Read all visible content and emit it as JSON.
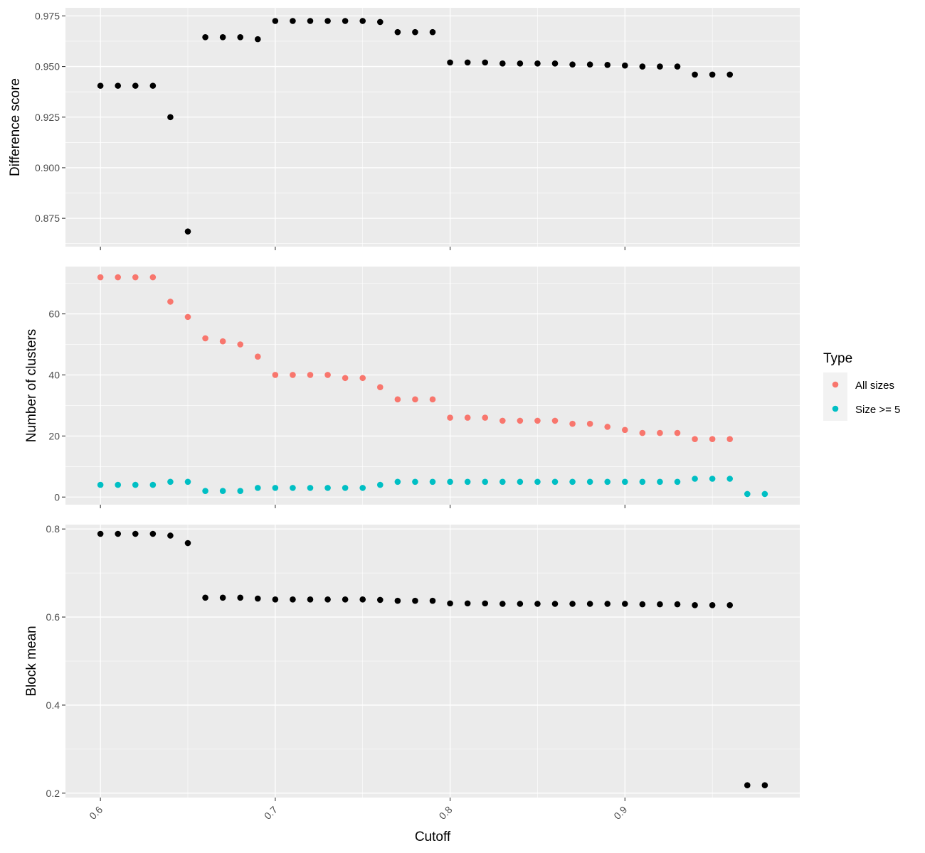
{
  "chart_data": {
    "type": "scatter",
    "xlabel": "Cutoff",
    "x_ticks": [
      0.6,
      0.7,
      0.8,
      0.9
    ],
    "xlim": [
      0.58,
      1.0
    ],
    "colors": {
      "panel_bg": "#ebebeb",
      "grid": "#ffffff",
      "points_default": "#000000",
      "all_sizes": "#f8766d",
      "size_ge_5": "#00bfc4",
      "legend_key_bg": "#f2f2f2"
    },
    "legend": {
      "title": "Type",
      "placement": "right",
      "entries": [
        {
          "label": "All sizes",
          "color": "#f8766d"
        },
        {
          "label": "Size >= 5",
          "color": "#00bfc4"
        }
      ]
    },
    "panels": [
      {
        "ylabel": "Difference score",
        "ylim": [
          0.861,
          0.979
        ],
        "y_ticks": [
          0.875,
          0.9,
          0.925,
          0.95,
          0.975
        ],
        "y_tick_labels": [
          "0.875",
          "0.900",
          "0.925",
          "0.950",
          "0.975"
        ],
        "series": [
          {
            "color": "#000000",
            "x": [
              0.6,
              0.61,
              0.62,
              0.63,
              0.64,
              0.65,
              0.66,
              0.67,
              0.68,
              0.69,
              0.7,
              0.71,
              0.72,
              0.73,
              0.74,
              0.75,
              0.76,
              0.77,
              0.78,
              0.79,
              0.8,
              0.81,
              0.82,
              0.83,
              0.84,
              0.85,
              0.86,
              0.87,
              0.88,
              0.89,
              0.9,
              0.91,
              0.92,
              0.93,
              0.94,
              0.95,
              0.96
            ],
            "y": [
              0.9405,
              0.9405,
              0.9405,
              0.9405,
              0.925,
              0.8685,
              0.9645,
              0.9645,
              0.9645,
              0.9635,
              0.9725,
              0.9725,
              0.9725,
              0.9725,
              0.9725,
              0.9725,
              0.972,
              0.967,
              0.967,
              0.967,
              0.952,
              0.952,
              0.952,
              0.9515,
              0.9515,
              0.9515,
              0.9515,
              0.951,
              0.951,
              0.9508,
              0.9505,
              0.95,
              0.95,
              0.95,
              0.946,
              0.946,
              0.946
            ]
          }
        ]
      },
      {
        "ylabel": "Number of clusters",
        "ylim": [
          -2.5,
          75.5
        ],
        "y_ticks": [
          0,
          20,
          40,
          60
        ],
        "y_tick_labels": [
          "0",
          "20",
          "40",
          "60"
        ],
        "series": [
          {
            "name": "All sizes",
            "color": "#f8766d",
            "x": [
              0.6,
              0.61,
              0.62,
              0.63,
              0.64,
              0.65,
              0.66,
              0.67,
              0.68,
              0.69,
              0.7,
              0.71,
              0.72,
              0.73,
              0.74,
              0.75,
              0.76,
              0.77,
              0.78,
              0.79,
              0.8,
              0.81,
              0.82,
              0.83,
              0.84,
              0.85,
              0.86,
              0.87,
              0.88,
              0.89,
              0.9,
              0.91,
              0.92,
              0.93,
              0.94,
              0.95,
              0.96
            ],
            "y": [
              72,
              72,
              72,
              72,
              64,
              59,
              52,
              51,
              50,
              46,
              40,
              40,
              40,
              40,
              39,
              39,
              36,
              32,
              32,
              32,
              26,
              26,
              26,
              25,
              25,
              25,
              25,
              24,
              24,
              23,
              22,
              21,
              21,
              21,
              19,
              19,
              19
            ]
          },
          {
            "name": "Size >= 5",
            "color": "#00bfc4",
            "x": [
              0.6,
              0.61,
              0.62,
              0.63,
              0.64,
              0.65,
              0.66,
              0.67,
              0.68,
              0.69,
              0.7,
              0.71,
              0.72,
              0.73,
              0.74,
              0.75,
              0.76,
              0.77,
              0.78,
              0.79,
              0.8,
              0.81,
              0.82,
              0.83,
              0.84,
              0.85,
              0.86,
              0.87,
              0.88,
              0.89,
              0.9,
              0.91,
              0.92,
              0.93,
              0.94,
              0.95,
              0.96,
              0.97,
              0.98
            ],
            "y": [
              4,
              4,
              4,
              4,
              5,
              5,
              2,
              2,
              2,
              3,
              3,
              3,
              3,
              3,
              3,
              3,
              4,
              5,
              5,
              5,
              5,
              5,
              5,
              5,
              5,
              5,
              5,
              5,
              5,
              5,
              5,
              5,
              5,
              5,
              6,
              6,
              6,
              1,
              1
            ]
          }
        ]
      },
      {
        "ylabel": "Block mean",
        "ylim": [
          0.19,
          0.81
        ],
        "y_ticks": [
          0.2,
          0.4,
          0.6,
          0.8
        ],
        "y_tick_labels": [
          "0.2",
          "0.4",
          "0.6",
          "0.8"
        ],
        "series": [
          {
            "color": "#000000",
            "x": [
              0.6,
              0.61,
              0.62,
              0.63,
              0.64,
              0.65,
              0.66,
              0.67,
              0.68,
              0.69,
              0.7,
              0.71,
              0.72,
              0.73,
              0.74,
              0.75,
              0.76,
              0.77,
              0.78,
              0.79,
              0.8,
              0.81,
              0.82,
              0.83,
              0.84,
              0.85,
              0.86,
              0.87,
              0.88,
              0.89,
              0.9,
              0.91,
              0.92,
              0.93,
              0.94,
              0.95,
              0.96,
              0.97,
              0.98
            ],
            "y": [
              0.789,
              0.789,
              0.789,
              0.789,
              0.785,
              0.768,
              0.644,
              0.644,
              0.644,
              0.642,
              0.64,
              0.64,
              0.64,
              0.64,
              0.64,
              0.64,
              0.639,
              0.637,
              0.637,
              0.637,
              0.631,
              0.631,
              0.631,
              0.63,
              0.63,
              0.63,
              0.63,
              0.63,
              0.63,
              0.63,
              0.63,
              0.629,
              0.629,
              0.629,
              0.627,
              0.627,
              0.627,
              0.218,
              0.218
            ]
          }
        ]
      }
    ]
  }
}
